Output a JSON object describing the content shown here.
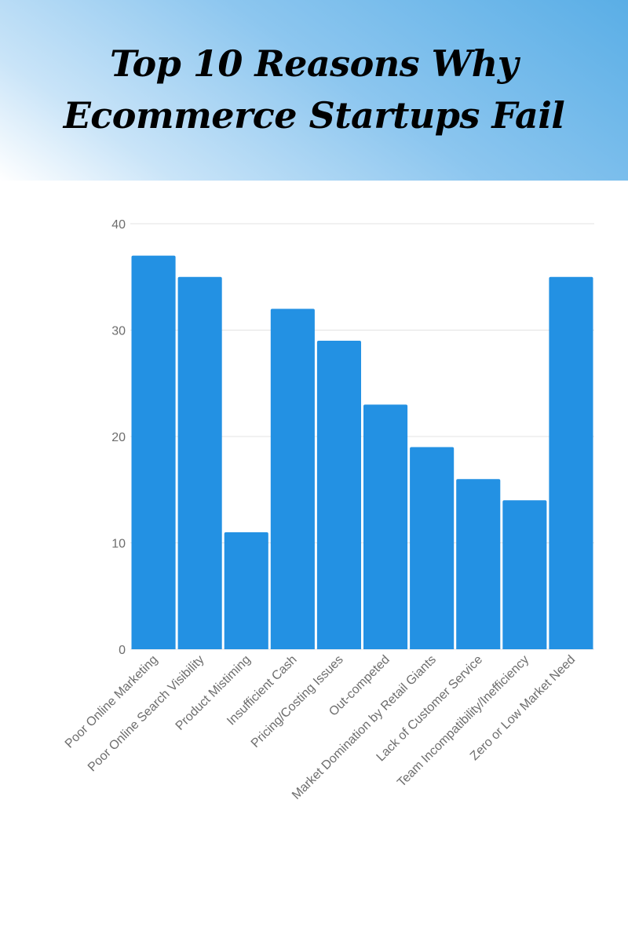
{
  "header": {
    "title_line1": "Top 10  Reasons Why",
    "title_line2": "Ecommerce Startups Fail",
    "gradient_colors": [
      "#5aaee6",
      "#8cc6ef",
      "#c9e4f8",
      "#ffffff"
    ]
  },
  "chart_data": {
    "type": "bar",
    "categories": [
      "Poor Online Marketing",
      "Poor Online Search Visibility",
      "Product Mistiming",
      "Insufficient Cash",
      "Pricing/Costing Issues",
      "Out-competed",
      "Market Domination by Retail Giants",
      "Lack of Customer Service",
      "Team Incompatibility/Inefficiency",
      "Zero or Low Market Need"
    ],
    "values": [
      37,
      35,
      11,
      32,
      29,
      23,
      19,
      16,
      14,
      35
    ],
    "title": "",
    "xlabel": "",
    "ylabel": "",
    "ylim": [
      0,
      40
    ],
    "yticks": [
      0,
      10,
      20,
      30,
      40
    ],
    "grid": true,
    "bar_color": "#2391e3",
    "tick_label_color": "#6d6d6d",
    "grid_color": "#e3e3e3"
  }
}
